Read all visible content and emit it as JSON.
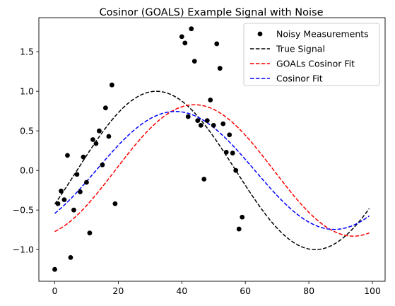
{
  "chart_data": {
    "type": "line",
    "title": "Cosinor (GOALS) Example Signal with Noise",
    "xlabel": "",
    "ylabel": "",
    "xlim": [
      -5,
      104
    ],
    "ylim": [
      -1.4,
      1.93
    ],
    "x_ticks": [
      0,
      20,
      40,
      60,
      80,
      100
    ],
    "y_ticks": [
      -1.0,
      -0.5,
      0.0,
      0.5,
      1.0,
      1.5
    ],
    "x_tick_labels": [
      "0",
      "20",
      "40",
      "60",
      "80",
      "100"
    ],
    "y_tick_labels": [
      "−1.0",
      "−0.5",
      "0.0",
      "0.5",
      "1.0",
      "1.5"
    ],
    "grid": false,
    "legend_position": "top-right",
    "scatter": {
      "name": "Noisy Measurements",
      "color": "#000000",
      "points": [
        [
          0,
          -1.25
        ],
        [
          1,
          -0.42
        ],
        [
          2,
          -0.26
        ],
        [
          3,
          -0.37
        ],
        [
          4,
          0.19
        ],
        [
          5,
          -1.1
        ],
        [
          6,
          -0.5
        ],
        [
          7,
          -0.05
        ],
        [
          8,
          -0.27
        ],
        [
          9,
          0.17
        ],
        [
          10,
          -0.15
        ],
        [
          11,
          -0.79
        ],
        [
          12,
          0.39
        ],
        [
          13,
          0.34
        ],
        [
          14,
          0.5
        ],
        [
          15,
          0.07
        ],
        [
          16,
          0.79
        ],
        [
          17,
          0.43
        ],
        [
          18,
          1.08
        ],
        [
          19,
          -0.42
        ],
        [
          40,
          1.69
        ],
        [
          41,
          1.61
        ],
        [
          42,
          0.68
        ],
        [
          43,
          1.79
        ],
        [
          44,
          1.38
        ],
        [
          45,
          0.63
        ],
        [
          46,
          0.57
        ],
        [
          47,
          -0.11
        ],
        [
          48,
          0.63
        ],
        [
          49,
          0.89
        ],
        [
          50,
          0.57
        ],
        [
          51,
          1.6
        ],
        [
          52,
          1.29
        ],
        [
          53,
          0.59
        ],
        [
          54,
          0.23
        ],
        [
          55,
          0.45
        ],
        [
          56,
          0.22
        ],
        [
          57,
          0.0
        ],
        [
          58,
          -0.74
        ],
        [
          59,
          -0.59
        ]
      ]
    },
    "series": [
      {
        "name": "True Signal",
        "color": "#000000",
        "style": "dashed",
        "mesor": 0.0,
        "amplitude": 1.0,
        "period": 100,
        "acrophase_x": 32
      },
      {
        "name": "GOALs Cosinor Fit",
        "color": "#ff0000",
        "style": "dashed",
        "mesor": 0.0,
        "amplitude": 0.83,
        "period": 100,
        "acrophase_x": 44
      },
      {
        "name": "Cosinor Fit",
        "color": "#0000ff",
        "style": "dashed",
        "mesor": 0.0,
        "amplitude": 0.745,
        "period": 100,
        "acrophase_x": 38
      }
    ],
    "x_range_curves": [
      0,
      99
    ]
  }
}
